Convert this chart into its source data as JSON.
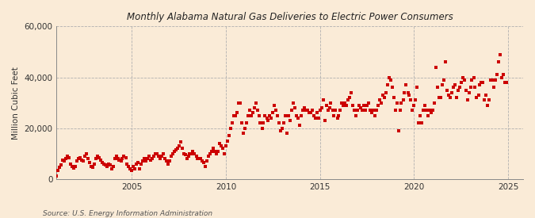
{
  "title": "Alabama Natural Gas Deliveries to Electric Power Consumers",
  "title_prefix": "Monthly ",
  "ylabel": "Million Cubic Feet",
  "source": "Source: U.S. Energy Information Administration",
  "background_color": "#faebd7",
  "plot_bg_color": "#faebd7",
  "marker_color": "#cc0000",
  "marker_size": 5,
  "ylim": [
    0,
    60000
  ],
  "yticks": [
    0,
    20000,
    40000,
    60000
  ],
  "xlim_start": 2001.0,
  "xlim_end": 2025.8,
  "xticks": [
    2005,
    2010,
    2015,
    2020,
    2025
  ],
  "data": [
    [
      2001.0,
      1200
    ],
    [
      2001.08,
      3500
    ],
    [
      2001.17,
      4500
    ],
    [
      2001.25,
      5500
    ],
    [
      2001.33,
      7500
    ],
    [
      2001.42,
      7000
    ],
    [
      2001.5,
      8000
    ],
    [
      2001.58,
      9000
    ],
    [
      2001.67,
      8500
    ],
    [
      2001.75,
      6000
    ],
    [
      2001.83,
      5000
    ],
    [
      2001.92,
      4200
    ],
    [
      2002.0,
      5000
    ],
    [
      2002.08,
      7000
    ],
    [
      2002.17,
      8000
    ],
    [
      2002.25,
      8500
    ],
    [
      2002.33,
      7500
    ],
    [
      2002.42,
      7000
    ],
    [
      2002.5,
      9000
    ],
    [
      2002.58,
      10000
    ],
    [
      2002.67,
      8000
    ],
    [
      2002.75,
      6500
    ],
    [
      2002.83,
      5000
    ],
    [
      2002.92,
      4500
    ],
    [
      2003.0,
      6000
    ],
    [
      2003.08,
      8000
    ],
    [
      2003.17,
      9000
    ],
    [
      2003.25,
      8500
    ],
    [
      2003.33,
      7500
    ],
    [
      2003.42,
      6500
    ],
    [
      2003.5,
      6000
    ],
    [
      2003.58,
      5500
    ],
    [
      2003.67,
      5000
    ],
    [
      2003.75,
      6000
    ],
    [
      2003.83,
      5500
    ],
    [
      2003.92,
      4000
    ],
    [
      2004.0,
      5000
    ],
    [
      2004.08,
      8000
    ],
    [
      2004.17,
      9000
    ],
    [
      2004.25,
      8000
    ],
    [
      2004.33,
      7500
    ],
    [
      2004.42,
      7000
    ],
    [
      2004.5,
      8000
    ],
    [
      2004.58,
      9000
    ],
    [
      2004.67,
      8500
    ],
    [
      2004.75,
      6000
    ],
    [
      2004.83,
      5000
    ],
    [
      2004.92,
      4000
    ],
    [
      2005.0,
      3500
    ],
    [
      2005.08,
      5000
    ],
    [
      2005.17,
      4000
    ],
    [
      2005.25,
      6000
    ],
    [
      2005.33,
      6500
    ],
    [
      2005.42,
      4000
    ],
    [
      2005.5,
      6000
    ],
    [
      2005.58,
      7000
    ],
    [
      2005.67,
      8000
    ],
    [
      2005.75,
      7000
    ],
    [
      2005.83,
      8000
    ],
    [
      2005.92,
      9000
    ],
    [
      2006.0,
      7500
    ],
    [
      2006.08,
      8000
    ],
    [
      2006.17,
      9000
    ],
    [
      2006.25,
      10000
    ],
    [
      2006.33,
      10000
    ],
    [
      2006.42,
      9000
    ],
    [
      2006.5,
      8000
    ],
    [
      2006.58,
      9000
    ],
    [
      2006.67,
      10000
    ],
    [
      2006.75,
      8000
    ],
    [
      2006.83,
      7000
    ],
    [
      2006.92,
      6000
    ],
    [
      2007.0,
      7000
    ],
    [
      2007.08,
      9000
    ],
    [
      2007.17,
      10000
    ],
    [
      2007.25,
      11000
    ],
    [
      2007.33,
      11500
    ],
    [
      2007.42,
      12000
    ],
    [
      2007.5,
      13000
    ],
    [
      2007.58,
      14500
    ],
    [
      2007.67,
      12000
    ],
    [
      2007.75,
      10000
    ],
    [
      2007.83,
      9500
    ],
    [
      2007.92,
      8000
    ],
    [
      2008.0,
      9000
    ],
    [
      2008.08,
      10000
    ],
    [
      2008.17,
      10000
    ],
    [
      2008.25,
      11000
    ],
    [
      2008.33,
      10000
    ],
    [
      2008.42,
      9000
    ],
    [
      2008.5,
      8000
    ],
    [
      2008.58,
      8000
    ],
    [
      2008.67,
      8000
    ],
    [
      2008.75,
      7000
    ],
    [
      2008.83,
      6500
    ],
    [
      2008.92,
      5000
    ],
    [
      2009.0,
      7000
    ],
    [
      2009.08,
      9000
    ],
    [
      2009.17,
      10000
    ],
    [
      2009.25,
      11000
    ],
    [
      2009.33,
      12000
    ],
    [
      2009.42,
      11000
    ],
    [
      2009.5,
      10000
    ],
    [
      2009.58,
      11000
    ],
    [
      2009.67,
      14000
    ],
    [
      2009.75,
      13000
    ],
    [
      2009.83,
      12000
    ],
    [
      2009.92,
      10000
    ],
    [
      2010.0,
      13000
    ],
    [
      2010.08,
      15000
    ],
    [
      2010.17,
      17000
    ],
    [
      2010.25,
      20000
    ],
    [
      2010.33,
      22000
    ],
    [
      2010.42,
      25000
    ],
    [
      2010.5,
      25000
    ],
    [
      2010.58,
      26000
    ],
    [
      2010.67,
      30000
    ],
    [
      2010.75,
      30000
    ],
    [
      2010.83,
      22000
    ],
    [
      2010.92,
      18000
    ],
    [
      2011.0,
      20000
    ],
    [
      2011.08,
      22000
    ],
    [
      2011.17,
      25000
    ],
    [
      2011.25,
      27000
    ],
    [
      2011.33,
      25000
    ],
    [
      2011.42,
      26000
    ],
    [
      2011.5,
      28000
    ],
    [
      2011.58,
      30000
    ],
    [
      2011.67,
      27000
    ],
    [
      2011.75,
      25000
    ],
    [
      2011.83,
      22000
    ],
    [
      2011.92,
      20000
    ],
    [
      2012.0,
      22000
    ],
    [
      2012.08,
      25000
    ],
    [
      2012.17,
      24000
    ],
    [
      2012.25,
      23000
    ],
    [
      2012.33,
      25000
    ],
    [
      2012.42,
      24000
    ],
    [
      2012.5,
      26000
    ],
    [
      2012.58,
      29000
    ],
    [
      2012.67,
      27000
    ],
    [
      2012.75,
      25000
    ],
    [
      2012.83,
      22000
    ],
    [
      2012.92,
      19000
    ],
    [
      2013.0,
      20000
    ],
    [
      2013.08,
      22000
    ],
    [
      2013.17,
      25000
    ],
    [
      2013.25,
      18000
    ],
    [
      2013.33,
      25000
    ],
    [
      2013.42,
      23000
    ],
    [
      2013.5,
      27000
    ],
    [
      2013.58,
      30000
    ],
    [
      2013.67,
      28000
    ],
    [
      2013.75,
      25000
    ],
    [
      2013.83,
      24000
    ],
    [
      2013.92,
      21000
    ],
    [
      2014.0,
      25000
    ],
    [
      2014.08,
      27000
    ],
    [
      2014.17,
      28000
    ],
    [
      2014.25,
      27000
    ],
    [
      2014.33,
      27000
    ],
    [
      2014.42,
      26000
    ],
    [
      2014.5,
      26000
    ],
    [
      2014.58,
      27000
    ],
    [
      2014.67,
      25000
    ],
    [
      2014.75,
      24000
    ],
    [
      2014.83,
      26000
    ],
    [
      2014.92,
      24000
    ],
    [
      2015.0,
      27000
    ],
    [
      2015.08,
      28000
    ],
    [
      2015.17,
      31000
    ],
    [
      2015.25,
      23000
    ],
    [
      2015.33,
      29000
    ],
    [
      2015.42,
      27000
    ],
    [
      2015.5,
      28000
    ],
    [
      2015.58,
      30000
    ],
    [
      2015.67,
      27000
    ],
    [
      2015.75,
      25000
    ],
    [
      2015.83,
      27000
    ],
    [
      2015.92,
      24000
    ],
    [
      2016.0,
      25000
    ],
    [
      2016.08,
      27000
    ],
    [
      2016.17,
      30000
    ],
    [
      2016.25,
      29000
    ],
    [
      2016.33,
      30000
    ],
    [
      2016.42,
      29000
    ],
    [
      2016.5,
      31000
    ],
    [
      2016.58,
      32000
    ],
    [
      2016.67,
      34000
    ],
    [
      2016.75,
      29000
    ],
    [
      2016.83,
      27000
    ],
    [
      2016.92,
      25000
    ],
    [
      2017.0,
      27000
    ],
    [
      2017.08,
      29000
    ],
    [
      2017.17,
      28000
    ],
    [
      2017.25,
      27000
    ],
    [
      2017.33,
      29000
    ],
    [
      2017.42,
      27000
    ],
    [
      2017.5,
      29000
    ],
    [
      2017.58,
      30000
    ],
    [
      2017.67,
      27000
    ],
    [
      2017.75,
      26000
    ],
    [
      2017.83,
      27000
    ],
    [
      2017.92,
      25000
    ],
    [
      2018.0,
      27000
    ],
    [
      2018.08,
      29000
    ],
    [
      2018.17,
      31000
    ],
    [
      2018.25,
      30000
    ],
    [
      2018.33,
      33000
    ],
    [
      2018.42,
      32000
    ],
    [
      2018.5,
      34000
    ],
    [
      2018.58,
      37000
    ],
    [
      2018.67,
      40000
    ],
    [
      2018.75,
      39000
    ],
    [
      2018.83,
      36000
    ],
    [
      2018.92,
      32000
    ],
    [
      2019.0,
      27000
    ],
    [
      2019.08,
      30000
    ],
    [
      2019.17,
      19000
    ],
    [
      2019.25,
      27000
    ],
    [
      2019.33,
      30000
    ],
    [
      2019.42,
      31000
    ],
    [
      2019.5,
      34000
    ],
    [
      2019.58,
      37000
    ],
    [
      2019.67,
      34000
    ],
    [
      2019.75,
      33000
    ],
    [
      2019.83,
      31000
    ],
    [
      2019.92,
      27000
    ],
    [
      2020.0,
      29000
    ],
    [
      2020.08,
      31000
    ],
    [
      2020.17,
      36000
    ],
    [
      2020.25,
      22000
    ],
    [
      2020.33,
      25000
    ],
    [
      2020.42,
      22000
    ],
    [
      2020.5,
      27000
    ],
    [
      2020.58,
      29000
    ],
    [
      2020.67,
      27000
    ],
    [
      2020.75,
      25000
    ],
    [
      2020.83,
      27000
    ],
    [
      2020.92,
      26000
    ],
    [
      2021.0,
      27000
    ],
    [
      2021.08,
      30000
    ],
    [
      2021.17,
      44000
    ],
    [
      2021.25,
      36000
    ],
    [
      2021.33,
      32000
    ],
    [
      2021.42,
      32000
    ],
    [
      2021.5,
      37000
    ],
    [
      2021.58,
      39000
    ],
    [
      2021.67,
      46000
    ],
    [
      2021.75,
      35000
    ],
    [
      2021.83,
      33000
    ],
    [
      2021.92,
      32000
    ],
    [
      2022.0,
      34000
    ],
    [
      2022.08,
      36000
    ],
    [
      2022.17,
      37000
    ],
    [
      2022.25,
      32000
    ],
    [
      2022.33,
      35000
    ],
    [
      2022.42,
      36000
    ],
    [
      2022.5,
      38000
    ],
    [
      2022.58,
      40000
    ],
    [
      2022.67,
      39000
    ],
    [
      2022.75,
      35000
    ],
    [
      2022.83,
      31000
    ],
    [
      2022.92,
      34000
    ],
    [
      2023.0,
      36000
    ],
    [
      2023.08,
      39000
    ],
    [
      2023.17,
      40000
    ],
    [
      2023.25,
      36000
    ],
    [
      2023.33,
      32000
    ],
    [
      2023.42,
      33000
    ],
    [
      2023.5,
      37000
    ],
    [
      2023.58,
      38000
    ],
    [
      2023.67,
      38000
    ],
    [
      2023.75,
      31000
    ],
    [
      2023.83,
      33000
    ],
    [
      2023.92,
      29000
    ],
    [
      2024.0,
      31000
    ],
    [
      2024.08,
      39000
    ],
    [
      2024.17,
      39000
    ],
    [
      2024.25,
      36000
    ],
    [
      2024.33,
      39000
    ],
    [
      2024.42,
      41000
    ],
    [
      2024.5,
      46000
    ],
    [
      2024.58,
      49000
    ],
    [
      2024.67,
      40000
    ],
    [
      2024.75,
      41000
    ],
    [
      2024.83,
      38000
    ],
    [
      2024.92,
      38000
    ]
  ]
}
